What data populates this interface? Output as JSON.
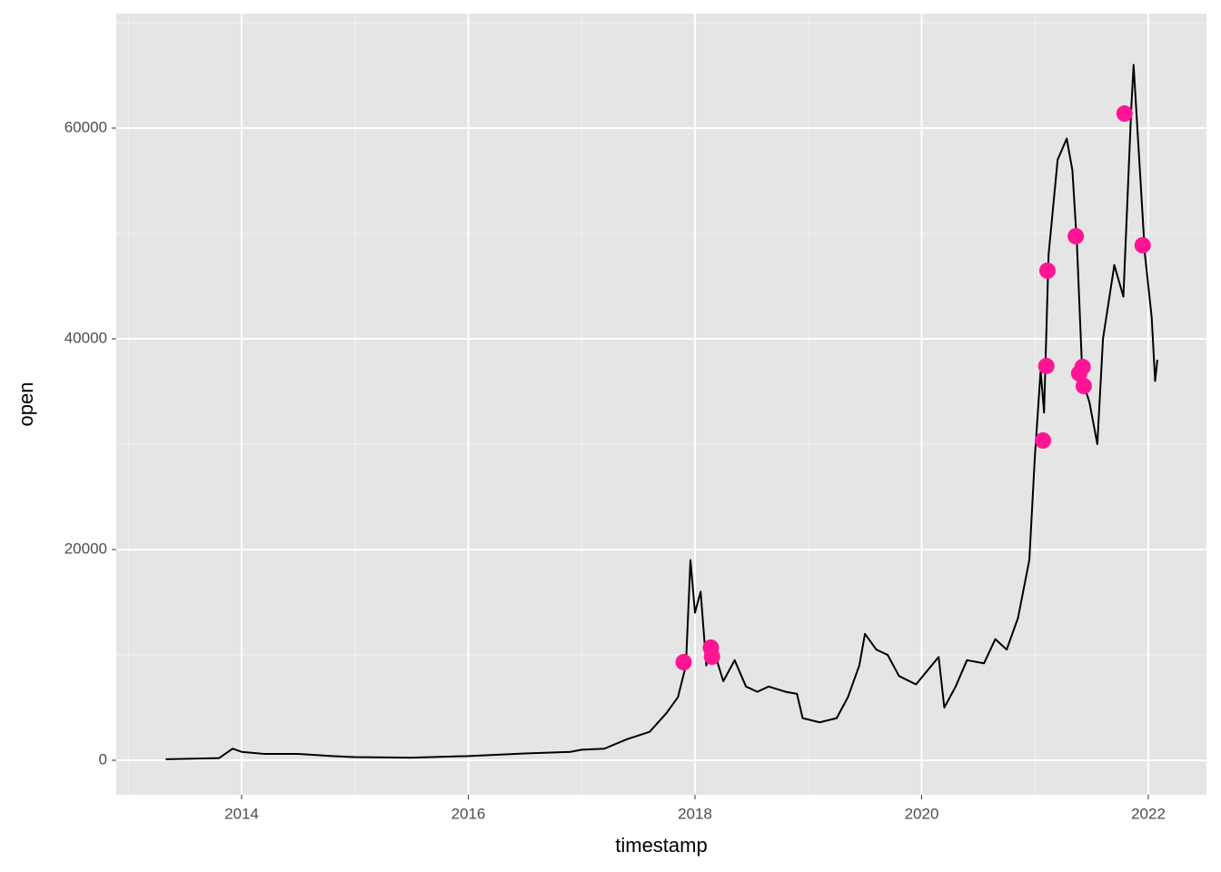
{
  "chart_data": {
    "type": "line",
    "x_label": "timestamp",
    "y_label": "open",
    "x": [
      2013.33,
      2013.8,
      2013.92,
      2014.0,
      2014.2,
      2014.5,
      2014.8,
      2015.0,
      2015.5,
      2016.0,
      2016.5,
      2016.9,
      2017.0,
      2017.2,
      2017.4,
      2017.6,
      2017.75,
      2017.85,
      2017.92,
      2017.96,
      2018.0,
      2018.05,
      2018.1,
      2018.15,
      2018.25,
      2018.35,
      2018.45,
      2018.55,
      2018.65,
      2018.8,
      2018.9,
      2018.95,
      2019.1,
      2019.25,
      2019.35,
      2019.45,
      2019.5,
      2019.6,
      2019.7,
      2019.8,
      2019.95,
      2020.05,
      2020.15,
      2020.2,
      2020.3,
      2020.4,
      2020.55,
      2020.65,
      2020.75,
      2020.85,
      2020.95,
      2021.0,
      2021.05,
      2021.08,
      2021.12,
      2021.2,
      2021.28,
      2021.33,
      2021.37,
      2021.42,
      2021.48,
      2021.55,
      2021.6,
      2021.7,
      2021.78,
      2021.85,
      2021.87,
      2021.92,
      2021.97,
      2022.03,
      2022.06,
      2022.08
    ],
    "values": [
      100,
      200,
      1100,
      800,
      600,
      600,
      400,
      300,
      250,
      400,
      650,
      800,
      1000,
      1100,
      2000,
      2700,
      4500,
      6000,
      9000,
      19000,
      14000,
      16000,
      9000,
      11000,
      7500,
      9500,
      7000,
      6500,
      7000,
      6500,
      6300,
      4000,
      3600,
      4000,
      6000,
      9000,
      12000,
      10500,
      10000,
      8000,
      7200,
      8500,
      9800,
      5000,
      7000,
      9500,
      9200,
      11500,
      10500,
      13500,
      19000,
      29000,
      37000,
      33000,
      48000,
      57000,
      59000,
      56000,
      49000,
      36000,
      34000,
      30000,
      40000,
      47000,
      44000,
      62000,
      66000,
      57000,
      48000,
      42000,
      36000,
      38000
    ],
    "color": "#000000",
    "highlight_x": [
      2017.9,
      2018.14,
      2018.15,
      2021.07,
      2021.1,
      2021.11,
      2021.36,
      2021.39,
      2021.42,
      2021.43,
      2021.79,
      2021.95
    ],
    "highlight_values": [
      9310,
      10690,
      9830,
      30345,
      37414,
      46466,
      49741,
      36724,
      37328,
      35517,
      61379,
      48879
    ],
    "highlight_color": "#ff1493",
    "xlim": [
      2012.894,
      2022.513
    ],
    "xticks": [
      2014,
      2016,
      2018,
      2020,
      2022
    ],
    "minor_xticks": [
      2013,
      2015,
      2017,
      2019,
      2021
    ],
    "ylim": [
      -3276,
      70862
    ],
    "yticks": [
      0,
      20000,
      40000,
      60000
    ],
    "minor_yticks": [
      10000,
      30000,
      50000,
      70000
    ],
    "grid": true
  }
}
